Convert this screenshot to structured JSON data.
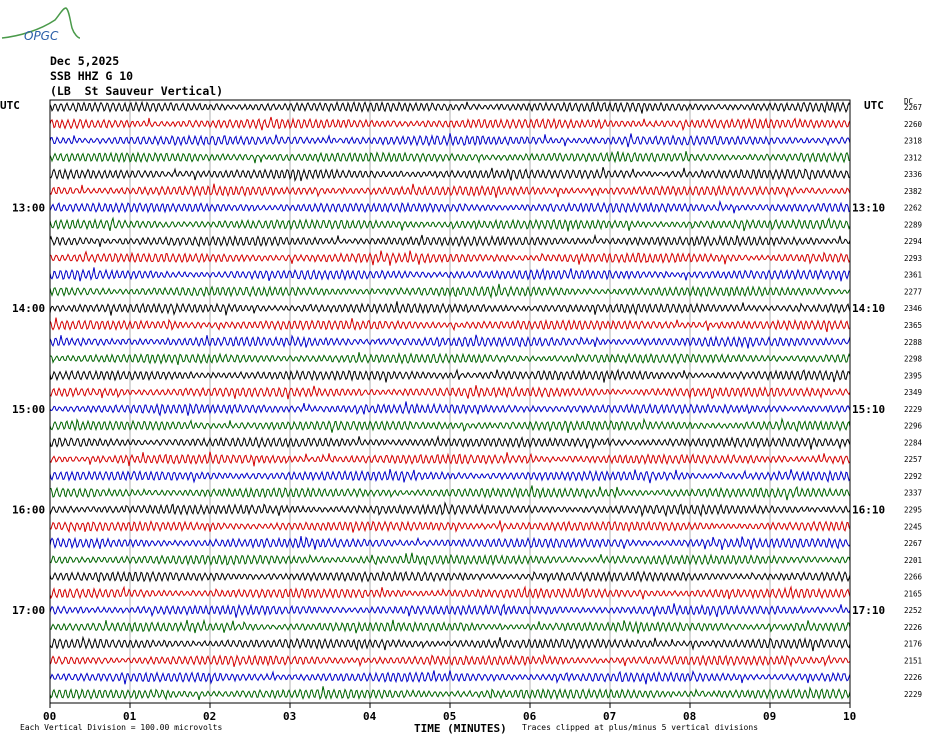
{
  "logo": {
    "text": "OPGC"
  },
  "header": {
    "date": "Dec 5,2025",
    "station": "SSB HHZ G 10",
    "location": "(LB  St Sauveur Vertical)"
  },
  "colors": {
    "trace": [
      "#000000",
      "#d40000",
      "#0000c8",
      "#006400"
    ],
    "grid": "#b0b0b0",
    "frame": "#000000"
  },
  "chart_data": {
    "type": "line",
    "title": "",
    "xlabel": "TIME (MINUTES)",
    "left_axis_label": "UTC",
    "right_axis_label": "UTC",
    "right_column_label": "DC",
    "x_ticks": [
      "00",
      "01",
      "02",
      "03",
      "04",
      "05",
      "06",
      "07",
      "08",
      "09",
      "10"
    ],
    "xlim": [
      0,
      10
    ],
    "left_time_labels": [
      {
        "row": 6,
        "text": "13:00"
      },
      {
        "row": 12,
        "text": "14:00"
      },
      {
        "row": 18,
        "text": "15:00"
      },
      {
        "row": 24,
        "text": "16:00"
      },
      {
        "row": 30,
        "text": "17:00"
      }
    ],
    "right_time_labels": [
      {
        "row": 6,
        "text": "13:10"
      },
      {
        "row": 12,
        "text": "14:10"
      },
      {
        "row": 18,
        "text": "15:10"
      },
      {
        "row": 24,
        "text": "16:10"
      },
      {
        "row": 30,
        "text": "17:10"
      }
    ],
    "dc_offsets": [
      2267,
      2260,
      2318,
      2312,
      2336,
      2382,
      2262,
      2289,
      2294,
      2293,
      2361,
      2277,
      2346,
      2365,
      2288,
      2298,
      2395,
      2349,
      2229,
      2296,
      2284,
      2257,
      2292,
      2337,
      2295,
      2245,
      2267,
      2201,
      2266,
      2165,
      2252,
      2226,
      2176,
      2151,
      2226,
      2229
    ],
    "scale_note": "Each Vertical Division =  100.00 microvolts",
    "clip_note": "Traces clipped at plus/minus 5 vertical divisions"
  }
}
